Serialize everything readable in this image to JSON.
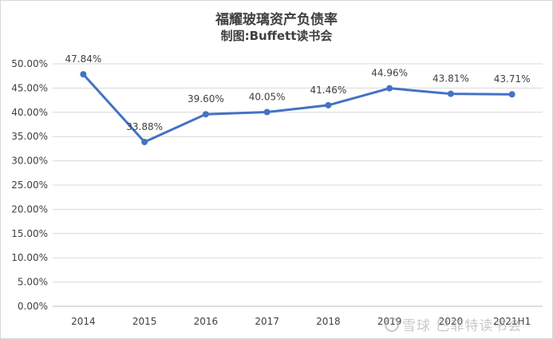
{
  "chart_data": {
    "type": "line",
    "title": "福耀玻璃资产负债率",
    "subtitle": "制图:Buffett读书会",
    "categories": [
      "2014",
      "2015",
      "2016",
      "2017",
      "2018",
      "2019",
      "2020",
      "2021H1"
    ],
    "series": [
      {
        "values": [
          47.84,
          33.88,
          39.6,
          40.05,
          41.46,
          44.96,
          43.81,
          43.71
        ],
        "labels": [
          "47.84%",
          "33.88%",
          "39.60%",
          "40.05%",
          "41.46%",
          "44.96%",
          "43.81%",
          "43.71%"
        ],
        "color": "#4472c4"
      }
    ],
    "ylim": [
      0,
      50
    ],
    "yticks": [
      0,
      5,
      10,
      15,
      20,
      25,
      30,
      35,
      40,
      45,
      50
    ],
    "ytick_labels": [
      "0.00%",
      "5.00%",
      "10.00%",
      "15.00%",
      "20.00%",
      "25.00%",
      "30.00%",
      "35.00%",
      "40.00%",
      "45.00%",
      "50.00%"
    ],
    "grid": true,
    "gridColor": "#d9d9d9"
  },
  "watermark": {
    "text": "雪球 巴菲特读书会",
    "icon": "snowball-logo-icon"
  }
}
